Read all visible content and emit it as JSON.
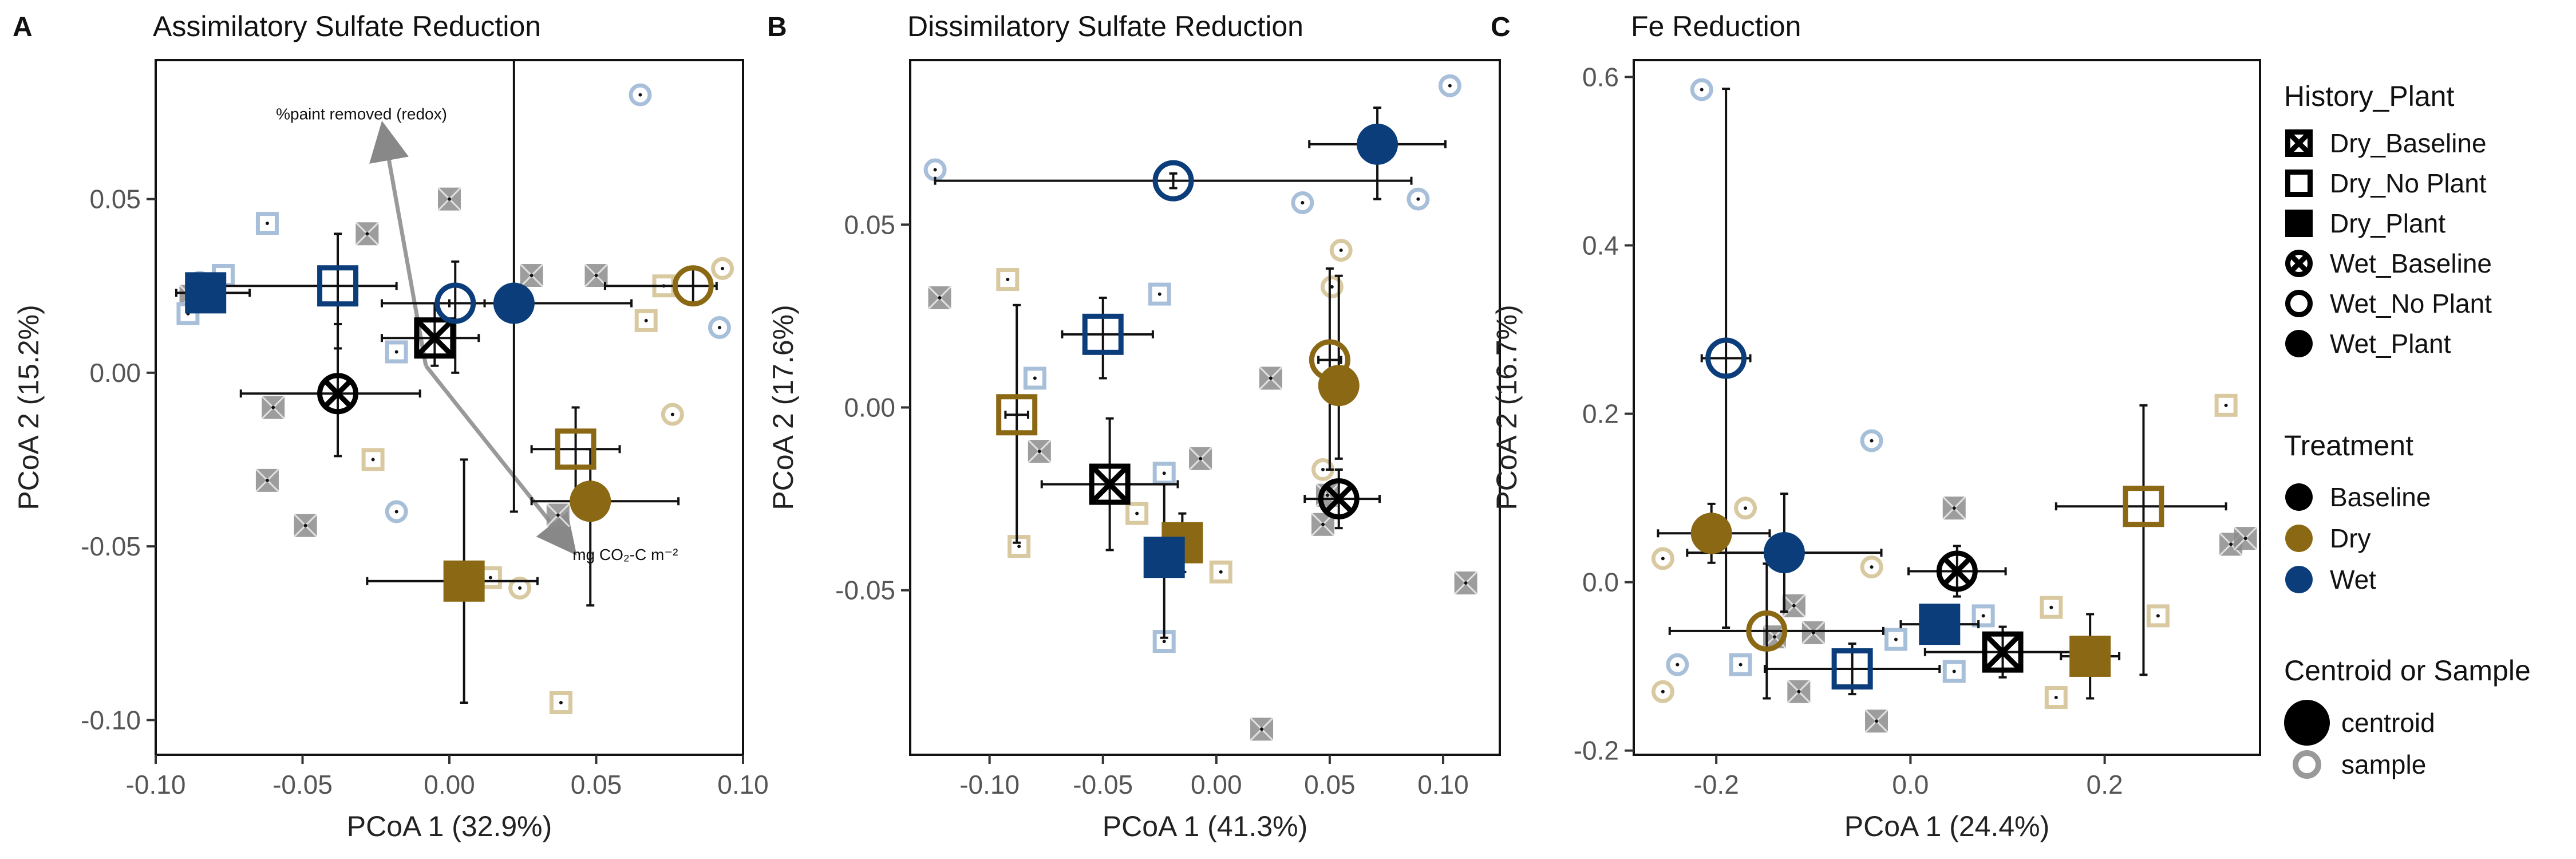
{
  "colors": {
    "Baseline": "#000000",
    "Dry": "#8B6914",
    "Wet": "#0A3D7A",
    "Baseline_s": "#8C8C8C",
    "Dry_s": "#D9C9A0",
    "Wet_s": "#A8BFDA"
  },
  "legend": {
    "history_title": "History_Plant",
    "history_items": [
      {
        "label": "Dry_Baseline",
        "shape": "square-x"
      },
      {
        "label": "Dry_No Plant",
        "shape": "square-open"
      },
      {
        "label": "Dry_Plant",
        "shape": "square-filled"
      },
      {
        "label": "Wet_Baseline",
        "shape": "circle-x"
      },
      {
        "label": "Wet_No Plant",
        "shape": "circle-open"
      },
      {
        "label": "Wet_Plant",
        "shape": "circle-filled"
      }
    ],
    "treatment_title": "Treatment",
    "treatment_items": [
      "Baseline",
      "Dry",
      "Wet"
    ],
    "size_title": "Centroid or Sample",
    "size_items": [
      "centroid",
      "sample"
    ]
  },
  "chart_data": [
    {
      "type": "scatter",
      "letter": "A",
      "title": "Assimilatory Sulfate Reduction",
      "xlabel": "PCoA 1 (32.9%)",
      "ylabel": "PCoA 2 (15.2%)",
      "xlim": [
        -0.1,
        0.1
      ],
      "ylim": [
        -0.11,
        0.09
      ],
      "xticks": [
        -0.1,
        -0.05,
        0.0,
        0.05,
        0.1
      ],
      "xticklabels": [
        "-0.10",
        "-0.05",
        "0.00",
        "0.05",
        "0.10"
      ],
      "yticks": [
        -0.1,
        -0.05,
        0.0,
        0.05
      ],
      "yticklabels": [
        "-0.10",
        "-0.05",
        "0.00",
        "0.05"
      ],
      "centroids": [
        {
          "hp": "Dry_Plant",
          "tr": "Dry",
          "x": 0.005,
          "y": -0.06,
          "xerr": [
            0.033,
            0.025
          ],
          "yerr": [
            0.035,
            0.035
          ]
        },
        {
          "hp": "Dry_No Plant",
          "tr": "Dry",
          "x": 0.043,
          "y": -0.022,
          "xerr": [
            0.015,
            0.015
          ],
          "yerr": [
            0.015,
            0.012
          ]
        },
        {
          "hp": "Wet_No Plant",
          "tr": "Dry",
          "x": 0.083,
          "y": 0.025,
          "xerr": [
            0.03,
            0.008
          ],
          "yerr": [
            0.005,
            0.005
          ]
        },
        {
          "hp": "Wet_Plant",
          "tr": "Dry",
          "x": 0.048,
          "y": -0.037,
          "xerr": [
            0.02,
            0.03
          ],
          "yerr": [
            0.03,
            0.015
          ]
        },
        {
          "hp": "Dry_Baseline",
          "tr": "Baseline",
          "x": -0.005,
          "y": 0.01,
          "xerr": [
            0.018,
            0.015
          ],
          "yerr": [
            0.008,
            0.01
          ]
        },
        {
          "hp": "Wet_Baseline",
          "tr": "Baseline",
          "x": -0.038,
          "y": -0.006,
          "xerr": [
            0.033,
            0.028
          ],
          "yerr": [
            0.018,
            0.02
          ]
        },
        {
          "hp": "Dry_No Plant",
          "tr": "Wet",
          "x": -0.038,
          "y": 0.025,
          "xerr": [
            0.04,
            0.02
          ],
          "yerr": [
            0.018,
            0.015
          ]
        },
        {
          "hp": "Dry_Plant",
          "tr": "Wet",
          "x": -0.083,
          "y": 0.023,
          "xerr": [
            0.01,
            0.015
          ],
          "yerr": [
            0.004,
            0.004
          ]
        },
        {
          "hp": "Wet_No Plant",
          "tr": "Wet",
          "x": 0.002,
          "y": 0.02,
          "xerr": [
            0.025,
            0.01
          ],
          "yerr": [
            0.02,
            0.012
          ]
        },
        {
          "hp": "Wet_Plant",
          "tr": "Wet",
          "x": 0.022,
          "y": 0.02,
          "xerr": [
            0.022,
            0.04
          ],
          "yerr": [
            0.06,
            0.08
          ]
        }
      ],
      "samples": [
        {
          "hp": "Dry_Baseline",
          "tr": "Baseline",
          "x": -0.088,
          "y": 0.022
        },
        {
          "hp": "Dry_Baseline",
          "tr": "Baseline",
          "x": -0.028,
          "y": 0.04
        },
        {
          "hp": "Dry_Baseline",
          "tr": "Baseline",
          "x": 0.0,
          "y": 0.05
        },
        {
          "hp": "Dry_Baseline",
          "tr": "Baseline",
          "x": -0.06,
          "y": -0.01
        },
        {
          "hp": "Dry_Baseline",
          "tr": "Baseline",
          "x": -0.062,
          "y": -0.031
        },
        {
          "hp": "Dry_Baseline",
          "tr": "Baseline",
          "x": -0.049,
          "y": -0.044
        },
        {
          "hp": "Dry_Baseline",
          "tr": "Baseline",
          "x": 0.028,
          "y": 0.028
        },
        {
          "hp": "Dry_Baseline",
          "tr": "Baseline",
          "x": 0.037,
          "y": -0.041
        },
        {
          "hp": "Dry_Baseline",
          "tr": "Baseline",
          "x": 0.05,
          "y": 0.028
        },
        {
          "hp": "Dry_No Plant",
          "tr": "Dry",
          "x": 0.073,
          "y": 0.025
        },
        {
          "hp": "Dry_No Plant",
          "tr": "Dry",
          "x": 0.067,
          "y": 0.015
        },
        {
          "hp": "Dry_No Plant",
          "tr": "Dry",
          "x": 0.014,
          "y": -0.059
        },
        {
          "hp": "Dry_No Plant",
          "tr": "Dry",
          "x": -0.026,
          "y": -0.025
        },
        {
          "hp": "Dry_No Plant",
          "tr": "Dry",
          "x": 0.038,
          "y": -0.095
        },
        {
          "hp": "Wet_No Plant",
          "tr": "Dry",
          "x": 0.093,
          "y": 0.03
        },
        {
          "hp": "Wet_No Plant",
          "tr": "Dry",
          "x": 0.076,
          "y": -0.012
        },
        {
          "hp": "Wet_No Plant",
          "tr": "Dry",
          "x": 0.024,
          "y": -0.062
        },
        {
          "hp": "Dry_No Plant",
          "tr": "Wet",
          "x": -0.062,
          "y": 0.043
        },
        {
          "hp": "Dry_No Plant",
          "tr": "Wet",
          "x": -0.077,
          "y": 0.028
        },
        {
          "hp": "Dry_No Plant",
          "tr": "Wet",
          "x": -0.089,
          "y": 0.017
        },
        {
          "hp": "Dry_No Plant",
          "tr": "Wet",
          "x": -0.018,
          "y": 0.006
        },
        {
          "hp": "Wet_No Plant",
          "tr": "Wet",
          "x": -0.085,
          "y": 0.026
        },
        {
          "hp": "Wet_No Plant",
          "tr": "Wet",
          "x": 0.065,
          "y": 0.08
        },
        {
          "hp": "Wet_No Plant",
          "tr": "Wet",
          "x": -0.018,
          "y": -0.04
        },
        {
          "hp": "Wet_No Plant",
          "tr": "Wet",
          "x": 0.092,
          "y": 0.013
        }
      ],
      "annotations": [
        {
          "text": "%paint removed (redox)"
        },
        {
          "text": "mg CO₂-C m⁻²"
        }
      ]
    },
    {
      "type": "scatter",
      "letter": "B",
      "title": "Dissimilatory Sulfate Reduction",
      "xlabel": "PCoA 1 (41.3%)",
      "ylabel": "PCoA 2 (17.6%)",
      "xlim": [
        -0.135,
        0.125
      ],
      "ylim": [
        -0.095,
        0.095
      ],
      "xticks": [
        -0.1,
        -0.05,
        0.0,
        0.05,
        0.1
      ],
      "xticklabels": [
        "-0.10",
        "-0.05",
        "0.00",
        "0.05",
        "0.10"
      ],
      "yticks": [
        -0.05,
        0.0,
        0.05
      ],
      "yticklabels": [
        "-0.05",
        "0.00",
        "0.05"
      ],
      "centroids": [
        {
          "hp": "Dry_No Plant",
          "tr": "Dry",
          "x": -0.088,
          "y": -0.002,
          "xerr": [
            0.005,
            0.005
          ],
          "yerr": [
            0.035,
            0.03
          ]
        },
        {
          "hp": "Dry_Plant",
          "tr": "Dry",
          "x": -0.015,
          "y": -0.037,
          "xerr": [
            0.008,
            0.008
          ],
          "yerr": [
            0.008,
            0.008
          ]
        },
        {
          "hp": "Wet_No Plant",
          "tr": "Dry",
          "x": 0.05,
          "y": 0.013,
          "xerr": [
            0.005,
            0.005
          ],
          "yerr": [
            0.03,
            0.025
          ]
        },
        {
          "hp": "Wet_Plant",
          "tr": "Dry",
          "x": 0.054,
          "y": 0.006,
          "xerr": [
            0.005,
            0.005
          ],
          "yerr": [
            0.02,
            0.03
          ]
        },
        {
          "hp": "Dry_Baseline",
          "tr": "Baseline",
          "x": -0.047,
          "y": -0.021,
          "xerr": [
            0.03,
            0.03
          ],
          "yerr": [
            0.018,
            0.018
          ]
        },
        {
          "hp": "Wet_Baseline",
          "tr": "Baseline",
          "x": 0.054,
          "y": -0.025,
          "xerr": [
            0.015,
            0.018
          ],
          "yerr": [
            0.008,
            0.008
          ]
        },
        {
          "hp": "Dry_No Plant",
          "tr": "Wet",
          "x": -0.05,
          "y": 0.02,
          "xerr": [
            0.018,
            0.022
          ],
          "yerr": [
            0.012,
            0.01
          ]
        },
        {
          "hp": "Dry_Plant",
          "tr": "Wet",
          "x": -0.023,
          "y": -0.041,
          "xerr": [
            0.005,
            0.005
          ],
          "yerr": [
            0.022,
            0.02
          ]
        },
        {
          "hp": "Wet_No Plant",
          "tr": "Wet",
          "x": -0.019,
          "y": 0.062,
          "xerr": [
            0.105,
            0.105
          ],
          "yerr": [
            0.002,
            0.002
          ]
        },
        {
          "hp": "Wet_Plant",
          "tr": "Wet",
          "x": 0.071,
          "y": 0.072,
          "xerr": [
            0.03,
            0.03
          ],
          "yerr": [
            0.015,
            0.01
          ]
        }
      ],
      "samples": [
        {
          "hp": "Dry_Baseline",
          "tr": "Baseline",
          "x": -0.122,
          "y": 0.03
        },
        {
          "hp": "Dry_Baseline",
          "tr": "Baseline",
          "x": -0.078,
          "y": -0.012
        },
        {
          "hp": "Dry_Baseline",
          "tr": "Baseline",
          "x": -0.007,
          "y": -0.014
        },
        {
          "hp": "Dry_Baseline",
          "tr": "Baseline",
          "x": 0.024,
          "y": 0.008
        },
        {
          "hp": "Dry_Baseline",
          "tr": "Baseline",
          "x": 0.049,
          "y": -0.024
        },
        {
          "hp": "Dry_Baseline",
          "tr": "Baseline",
          "x": 0.047,
          "y": -0.032
        },
        {
          "hp": "Dry_Baseline",
          "tr": "Baseline",
          "x": 0.11,
          "y": -0.048
        },
        {
          "hp": "Dry_Baseline",
          "tr": "Baseline",
          "x": 0.02,
          "y": -0.088
        },
        {
          "hp": "Dry_No Plant",
          "tr": "Dry",
          "x": -0.092,
          "y": 0.035
        },
        {
          "hp": "Dry_No Plant",
          "tr": "Dry",
          "x": -0.087,
          "y": -0.038
        },
        {
          "hp": "Dry_No Plant",
          "tr": "Dry",
          "x": -0.035,
          "y": -0.029
        },
        {
          "hp": "Dry_No Plant",
          "tr": "Dry",
          "x": 0.002,
          "y": -0.045
        },
        {
          "hp": "Wet_No Plant",
          "tr": "Dry",
          "x": 0.055,
          "y": 0.043
        },
        {
          "hp": "Wet_No Plant",
          "tr": "Dry",
          "x": 0.051,
          "y": 0.033
        },
        {
          "hp": "Wet_No Plant",
          "tr": "Dry",
          "x": 0.047,
          "y": -0.017
        },
        {
          "hp": "Dry_No Plant",
          "tr": "Wet",
          "x": -0.025,
          "y": 0.031
        },
        {
          "hp": "Dry_No Plant",
          "tr": "Wet",
          "x": -0.08,
          "y": 0.008
        },
        {
          "hp": "Dry_No Plant",
          "tr": "Wet",
          "x": -0.023,
          "y": -0.018
        },
        {
          "hp": "Dry_No Plant",
          "tr": "Wet",
          "x": -0.023,
          "y": -0.064
        },
        {
          "hp": "Wet_No Plant",
          "tr": "Wet",
          "x": -0.124,
          "y": 0.065
        },
        {
          "hp": "Wet_No Plant",
          "tr": "Wet",
          "x": 0.038,
          "y": 0.056
        },
        {
          "hp": "Wet_No Plant",
          "tr": "Wet",
          "x": 0.089,
          "y": 0.057
        },
        {
          "hp": "Wet_No Plant",
          "tr": "Wet",
          "x": 0.103,
          "y": 0.088
        }
      ]
    },
    {
      "type": "scatter",
      "letter": "C",
      "title": "Fe Reduction",
      "xlabel": "PCoA 1 (24.4%)",
      "ylabel": "PCoA 2 (16.7%)",
      "xlim": [
        -0.285,
        0.36
      ],
      "ylim": [
        -0.205,
        0.62
      ],
      "xticks": [
        -0.2,
        0.0,
        0.2
      ],
      "xticklabels": [
        "-0.2",
        "0.0",
        "0.2"
      ],
      "yticks": [
        -0.2,
        0.0,
        0.2,
        0.4,
        0.6
      ],
      "yticklabels": [
        "-0.2",
        "0.0",
        "0.2",
        "0.4",
        "0.6"
      ],
      "centroids": [
        {
          "hp": "Wet_Plant",
          "tr": "Dry",
          "x": -0.205,
          "y": 0.058,
          "xerr": [
            0.055,
            0.06
          ],
          "yerr": [
            0.035,
            0.035
          ]
        },
        {
          "hp": "Wet_No Plant",
          "tr": "Dry",
          "x": -0.148,
          "y": -0.058,
          "xerr": [
            0.1,
            0.12
          ],
          "yerr": [
            0.08,
            0.08
          ]
        },
        {
          "hp": "Dry_No Plant",
          "tr": "Dry",
          "x": 0.24,
          "y": 0.09,
          "xerr": [
            0.09,
            0.085
          ],
          "yerr": [
            0.2,
            0.12
          ]
        },
        {
          "hp": "Dry_Plant",
          "tr": "Dry",
          "x": 0.185,
          "y": -0.088,
          "xerr": [
            0.03,
            0.03
          ],
          "yerr": [
            0.05,
            0.05
          ]
        },
        {
          "hp": "Wet_Baseline",
          "tr": "Baseline",
          "x": 0.048,
          "y": 0.013,
          "xerr": [
            0.05,
            0.05
          ],
          "yerr": [
            0.03,
            0.03
          ]
        },
        {
          "hp": "Dry_Baseline",
          "tr": "Baseline",
          "x": 0.095,
          "y": -0.083,
          "xerr": [
            0.08,
            0.11
          ],
          "yerr": [
            0.03,
            0.03
          ]
        },
        {
          "hp": "Wet_No Plant",
          "tr": "Wet",
          "x": -0.19,
          "y": 0.266,
          "xerr": [
            0.025,
            0.025
          ],
          "yerr": [
            0.32,
            0.32
          ]
        },
        {
          "hp": "Wet_Plant",
          "tr": "Wet",
          "x": -0.13,
          "y": 0.035,
          "xerr": [
            0.1,
            0.1
          ],
          "yerr": [
            0.07,
            0.07
          ]
        },
        {
          "hp": "Dry_Plant",
          "tr": "Wet",
          "x": 0.03,
          "y": -0.05,
          "xerr": [
            0.04,
            0.04
          ],
          "yerr": [
            0.02,
            0.02
          ]
        },
        {
          "hp": "Dry_No Plant",
          "tr": "Wet",
          "x": -0.06,
          "y": -0.103,
          "xerr": [
            0.09,
            0.09
          ],
          "yerr": [
            0.03,
            0.03
          ]
        }
      ],
      "samples": [
        {
          "hp": "Dry_Baseline",
          "tr": "Baseline",
          "x": -0.12,
          "y": -0.028
        },
        {
          "hp": "Dry_Baseline",
          "tr": "Baseline",
          "x": -0.1,
          "y": -0.06
        },
        {
          "hp": "Dry_Baseline",
          "tr": "Baseline",
          "x": -0.14,
          "y": -0.065
        },
        {
          "hp": "Dry_Baseline",
          "tr": "Baseline",
          "x": -0.115,
          "y": -0.13
        },
        {
          "hp": "Dry_Baseline",
          "tr": "Baseline",
          "x": -0.035,
          "y": -0.165
        },
        {
          "hp": "Dry_Baseline",
          "tr": "Baseline",
          "x": 0.045,
          "y": 0.088
        },
        {
          "hp": "Dry_Baseline",
          "tr": "Baseline",
          "x": 0.33,
          "y": 0.045
        },
        {
          "hp": "Dry_Baseline",
          "tr": "Baseline",
          "x": 0.345,
          "y": 0.052
        },
        {
          "hp": "Wet_No Plant",
          "tr": "Dry",
          "x": -0.255,
          "y": -0.13
        },
        {
          "hp": "Wet_No Plant",
          "tr": "Dry",
          "x": -0.255,
          "y": 0.028
        },
        {
          "hp": "Wet_No Plant",
          "tr": "Dry",
          "x": -0.17,
          "y": 0.088
        },
        {
          "hp": "Wet_No Plant",
          "tr": "Dry",
          "x": -0.04,
          "y": 0.018
        },
        {
          "hp": "Dry_No Plant",
          "tr": "Dry",
          "x": 0.325,
          "y": 0.21
        },
        {
          "hp": "Dry_No Plant",
          "tr": "Dry",
          "x": 0.145,
          "y": -0.03
        },
        {
          "hp": "Dry_No Plant",
          "tr": "Dry",
          "x": 0.255,
          "y": -0.04
        },
        {
          "hp": "Dry_No Plant",
          "tr": "Dry",
          "x": 0.15,
          "y": -0.137
        },
        {
          "hp": "Wet_No Plant",
          "tr": "Wet",
          "x": -0.215,
          "y": 0.585
        },
        {
          "hp": "Wet_No Plant",
          "tr": "Wet",
          "x": -0.04,
          "y": 0.168
        },
        {
          "hp": "Wet_No Plant",
          "tr": "Wet",
          "x": -0.24,
          "y": -0.098
        },
        {
          "hp": "Dry_No Plant",
          "tr": "Wet",
          "x": -0.175,
          "y": -0.098
        },
        {
          "hp": "Dry_No Plant",
          "tr": "Wet",
          "x": -0.015,
          "y": -0.068
        },
        {
          "hp": "Dry_No Plant",
          "tr": "Wet",
          "x": 0.045,
          "y": -0.106
        },
        {
          "hp": "Dry_No Plant",
          "tr": "Wet",
          "x": 0.075,
          "y": -0.04
        }
      ]
    }
  ]
}
